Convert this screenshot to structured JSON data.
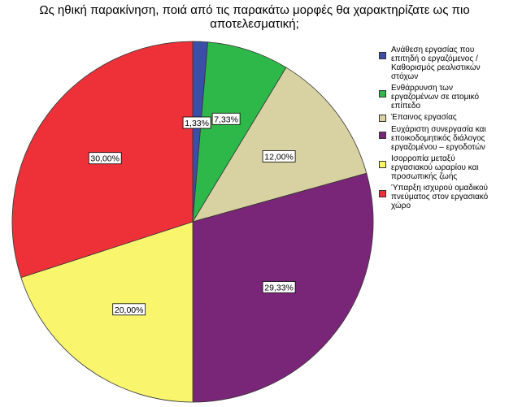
{
  "chart_data": {
    "type": "pie",
    "title": "Ως ηθική παρακίνηση, ποιά από τις παρακάτω μορφές θα χαρακτηρίζατε ως πιο αποτελεσματική;",
    "title_lines": [
      "Ως ηθική παρακίνηση, ποιά από τις παρακάτω μορφές θα χαρακτηρίζατε ως πιο",
      "αποτελεσματική;"
    ],
    "start": "top",
    "direction": "clockwise",
    "legend_position": "right",
    "slices": [
      {
        "label": "Ανάθεση εργασίας που\nεπιτηδή ο εργαζόμενος /\nΚαθορισμός ρεαλιστικών\nστόχων",
        "value": 1.33,
        "value_label": "1,33%",
        "color": "#3b4fa8"
      },
      {
        "label": "Ενθάρρυνση των\nεργαζομένων σε ατομικό\nεπίπεδο",
        "value": 7.33,
        "value_label": "7,33%",
        "color": "#2fb84a"
      },
      {
        "label": "Έπαινος εργασίας",
        "value": 12.0,
        "value_label": "12,00%",
        "color": "#d8d2a2"
      },
      {
        "label": "Ευχάριστη συνεργασία και\nεποικοδομητικός διάλογος\nεργαζομένου – εργοδοτών",
        "value": 29.33,
        "value_label": "29,33%",
        "color": "#7a2678"
      },
      {
        "label": "Ισορροπία μεταξύ\nεργασιακού ωραρίου και\nπροσωπικής ζωής",
        "value": 20.0,
        "value_label": "20,00%",
        "color": "#f9f66e"
      },
      {
        "label": "Ύπαρξη ισχυρού ομαδικού\nπνεύματος στον εργασιακό\nχώρο",
        "value": 30.0,
        "value_label": "30,00%",
        "color": "#ee3138"
      }
    ]
  }
}
